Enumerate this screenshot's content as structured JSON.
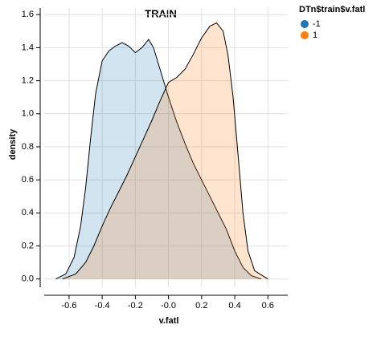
{
  "chart_data": {
    "type": "area",
    "title": "TRAIN",
    "x_label": "v.fatl",
    "y_label": "density",
    "legend_title": "DTn$train$v.fatl",
    "legend_position": "top-right",
    "grid": true,
    "xlim": [
      -0.75,
      0.72
    ],
    "ylim": [
      -0.05,
      1.64
    ],
    "xticks": [
      -0.6,
      -0.4,
      -0.2,
      {
        "value": 0,
        "label": "-0.0"
      },
      0.2,
      0.4,
      0.6
    ],
    "yticks": [
      {
        "value": 0,
        "label": "0.0"
      },
      0.2,
      0.4,
      0.6,
      0.8,
      {
        "value": 1,
        "label": "1.0"
      },
      1.2,
      1.4,
      1.6
    ],
    "series": [
      {
        "name": "-1",
        "color": "#1f77b4",
        "x": [
          -0.68,
          -0.62,
          -0.57,
          -0.53,
          -0.5,
          -0.47,
          -0.44,
          -0.4,
          -0.36,
          -0.32,
          -0.28,
          -0.24,
          -0.2,
          -0.16,
          -0.12,
          -0.09,
          -0.06,
          -0.03,
          0.0,
          0.05,
          0.1,
          0.15,
          0.2,
          0.25,
          0.3,
          0.35,
          0.4,
          0.45,
          0.5,
          0.56
        ],
        "values": [
          0.0,
          0.03,
          0.13,
          0.32,
          0.55,
          0.85,
          1.12,
          1.32,
          1.38,
          1.41,
          1.43,
          1.41,
          1.37,
          1.4,
          1.45,
          1.4,
          1.3,
          1.2,
          1.1,
          0.95,
          0.82,
          0.7,
          0.6,
          0.5,
          0.4,
          0.3,
          0.17,
          0.07,
          0.02,
          0.0
        ]
      },
      {
        "name": "1",
        "color": "#ff7f0e",
        "x": [
          -0.64,
          -0.56,
          -0.5,
          -0.45,
          -0.4,
          -0.35,
          -0.3,
          -0.25,
          -0.2,
          -0.15,
          -0.1,
          -0.05,
          0.0,
          0.05,
          0.1,
          0.15,
          0.2,
          0.25,
          0.29,
          0.33,
          0.36,
          0.39,
          0.42,
          0.45,
          0.48,
          0.52,
          0.6
        ],
        "values": [
          0.0,
          0.03,
          0.1,
          0.2,
          0.32,
          0.43,
          0.53,
          0.63,
          0.74,
          0.85,
          0.96,
          1.08,
          1.19,
          1.22,
          1.27,
          1.36,
          1.46,
          1.53,
          1.55,
          1.5,
          1.35,
          1.1,
          0.75,
          0.4,
          0.17,
          0.05,
          0.0
        ]
      }
    ]
  }
}
